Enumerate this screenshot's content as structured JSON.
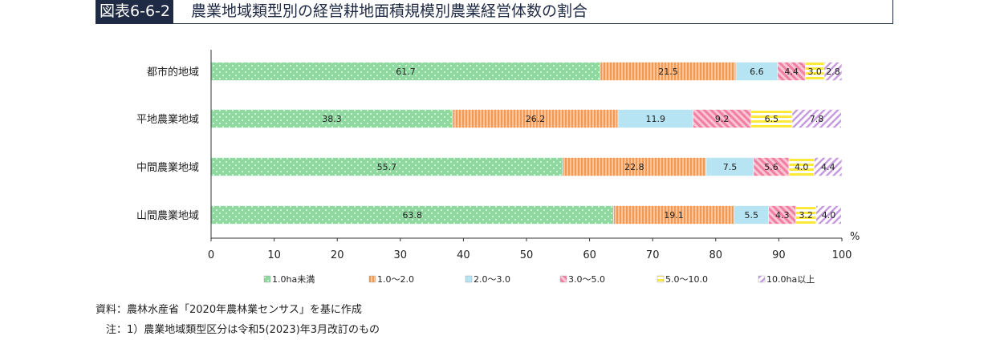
{
  "header": {
    "tag": "図表6-6-2",
    "title": "農業地域類型別の経営耕地面積規模別農業経営体数の割合"
  },
  "chart_data": {
    "type": "bar",
    "orientation": "horizontal",
    "stacked": true,
    "categories": [
      "都市的地域",
      "平地農業地域",
      "中間農業地域",
      "山間農業地域"
    ],
    "series": [
      {
        "name": "1.0ha未満",
        "values": [
          61.7,
          38.3,
          55.7,
          63.8
        ],
        "color": "#8fd9a0",
        "pattern": "dots"
      },
      {
        "name": "1.0～2.0",
        "values": [
          21.5,
          26.2,
          22.8,
          19.1
        ],
        "color": "#f4a86a",
        "pattern": "vstripes"
      },
      {
        "name": "2.0～3.0",
        "values": [
          6.6,
          11.9,
          7.5,
          5.5
        ],
        "color": "#b6e4f2",
        "pattern": "solid"
      },
      {
        "name": "3.0～5.0",
        "values": [
          4.4,
          9.2,
          5.6,
          4.3
        ],
        "color": "#f291ae",
        "pattern": "diag"
      },
      {
        "name": "5.0～10.0",
        "values": [
          3.0,
          6.5,
          4.0,
          3.2
        ],
        "color": "#fff04a",
        "pattern": "hstripes"
      },
      {
        "name": "10.0ha以上",
        "values": [
          2.8,
          7.8,
          4.4,
          4.0
        ],
        "color": "#d6b3e6",
        "pattern": "diag2"
      }
    ],
    "xlim": [
      0,
      100
    ],
    "xticks": [
      "0",
      "10",
      "20",
      "30",
      "40",
      "50",
      "60",
      "70",
      "80",
      "90",
      "100"
    ],
    "unit": "%",
    "legend_position": "bottom",
    "grid": false
  },
  "footnotes": {
    "source": "資料：農林水産省「2020年農林業センサス」を基に作成",
    "note": "　注：1）農業地域類型区分は令和5(2023)年3月改訂のもの"
  }
}
